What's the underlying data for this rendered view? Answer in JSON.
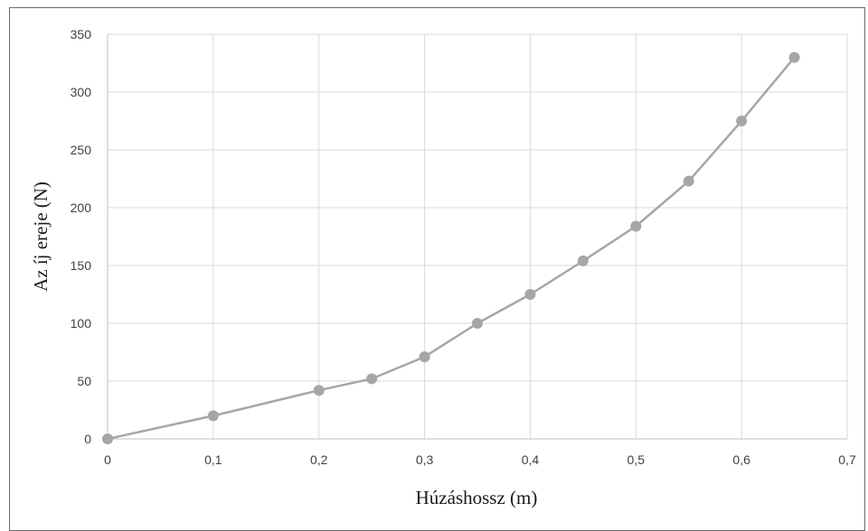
{
  "chart_data": {
    "type": "line",
    "title": "",
    "xlabel": "Húzáshossz (m)",
    "ylabel": "Az íj ereje (N)",
    "xlim": [
      0,
      0.7
    ],
    "ylim": [
      0,
      350
    ],
    "x_ticks": [
      0,
      0.1,
      0.2,
      0.3,
      0.4,
      0.5,
      0.6,
      0.7
    ],
    "x_tick_labels": [
      "0",
      "0,1",
      "0,2",
      "0,3",
      "0,4",
      "0,5",
      "0,6",
      "0,7"
    ],
    "y_ticks": [
      0,
      50,
      100,
      150,
      200,
      250,
      300,
      350
    ],
    "y_tick_labels": [
      "0",
      "50",
      "100",
      "150",
      "200",
      "250",
      "300",
      "350"
    ],
    "grid": true,
    "legend": "none",
    "series": [
      {
        "color": "#a6a6a6",
        "marker": "circle",
        "x": [
          0,
          0.1,
          0.2,
          0.25,
          0.3,
          0.35,
          0.4,
          0.45,
          0.5,
          0.55,
          0.6,
          0.65
        ],
        "y": [
          0,
          20,
          42,
          52,
          71,
          100,
          125,
          154,
          184,
          223,
          275,
          330
        ]
      }
    ]
  }
}
